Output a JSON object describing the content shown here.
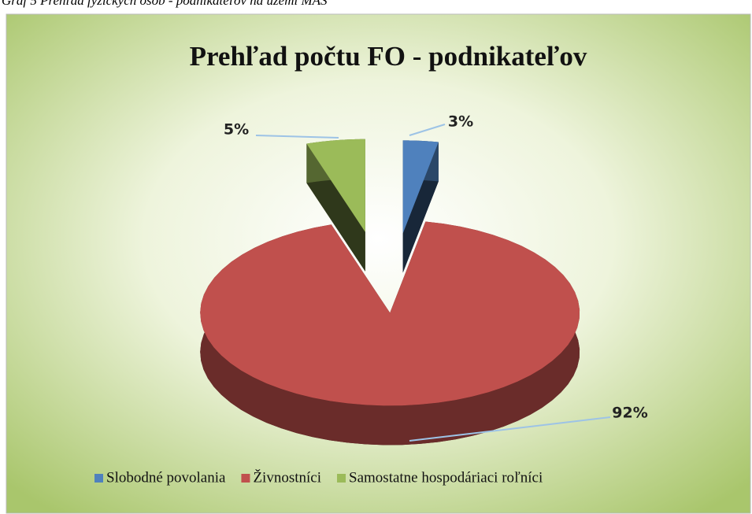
{
  "caption": "Graf 5 Prehľad fyzických osôb - podnikateľov na území MAS",
  "chart_data": {
    "type": "pie",
    "title": "Prehľad počtu FO - podnikateľov",
    "categories": [
      "Slobodné povolania",
      "Živnostníci",
      "Samostatne hospodáriaci roľníci"
    ],
    "values": [
      3,
      92,
      5
    ],
    "value_labels": [
      "3%",
      "92%",
      "5%"
    ],
    "colors": [
      "#4f81bd",
      "#c0504d",
      "#9bbb59"
    ],
    "legend": "bottom"
  }
}
